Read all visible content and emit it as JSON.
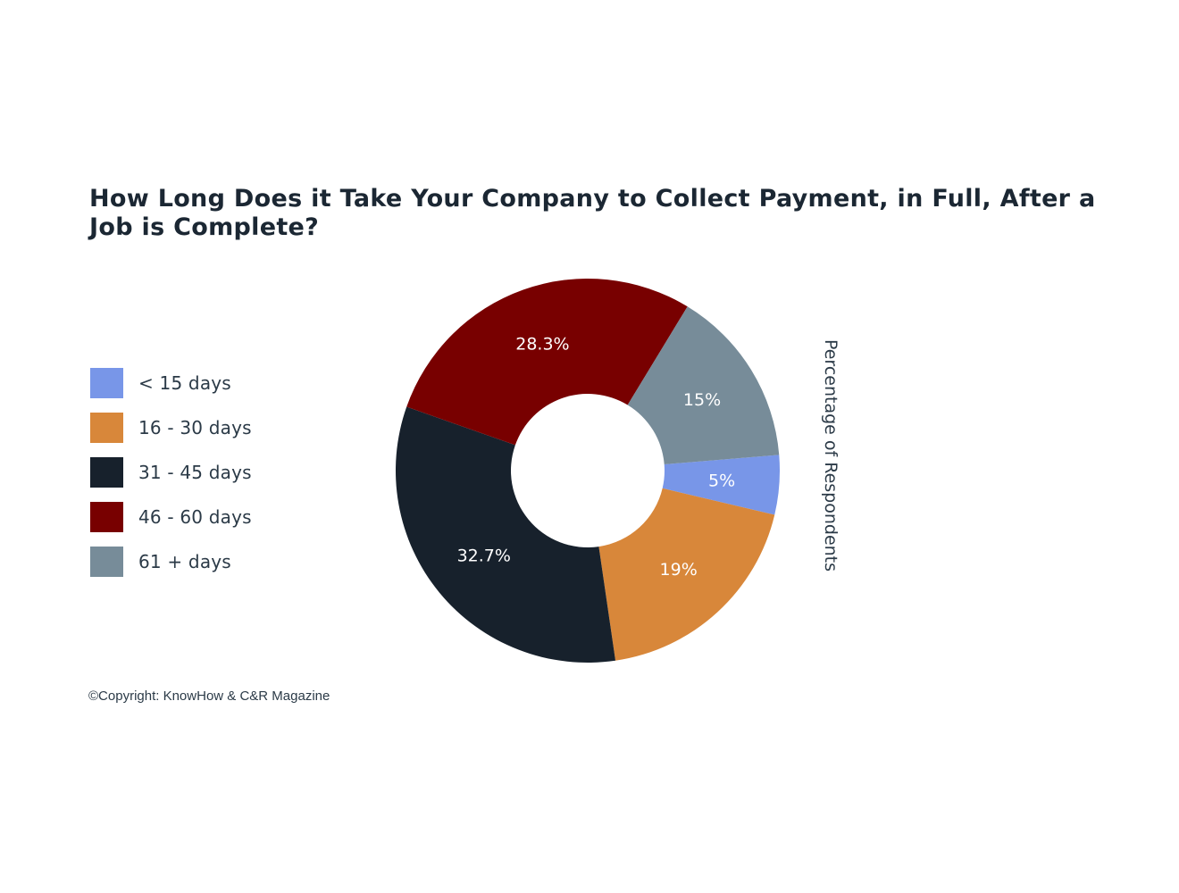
{
  "chart_data": {
    "type": "pie",
    "title": "How Long Does it Take Your Company to Collect Payment, in Full, After a Job is Complete?",
    "axis_label": "Percentage of Respondents",
    "legend_position": "left",
    "categories": [
      "< 15 days",
      "16 - 30 days",
      "31 - 45 days",
      "46 - 60 days",
      "61 + days"
    ],
    "values": [
      5,
      19,
      32.7,
      28.3,
      15
    ],
    "data_labels": [
      "5%",
      "19%",
      "32.7%",
      "28.3%",
      "15%"
    ],
    "colors": [
      "#7896e8",
      "#d8873a",
      "#17212c",
      "#780000",
      "#778c99"
    ],
    "donut": true
  },
  "footer": {
    "copyright": "©Copyright: KnowHow & C&R Magazine"
  }
}
